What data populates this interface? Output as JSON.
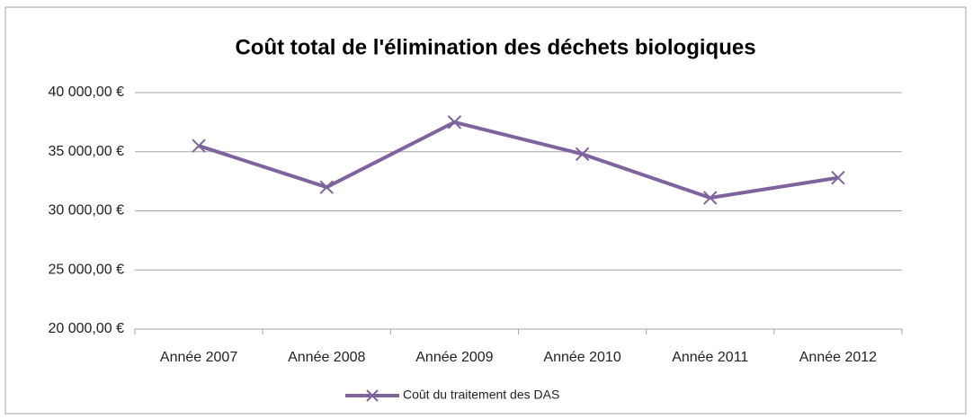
{
  "chart_data": {
    "type": "line",
    "title": "Coût total de l'élimination des déchets biologiques",
    "categories": [
      "Année 2007",
      "Année 2008",
      "Année 2009",
      "Année 2010",
      "Année 2011",
      "Année 2012"
    ],
    "series": [
      {
        "name": "Coût du traitement des DAS",
        "color": "#7e639e",
        "values": [
          35500,
          32000,
          37500,
          34800,
          31100,
          32800
        ]
      }
    ],
    "ylim": [
      20000,
      40000
    ],
    "yticks": [
      {
        "value": 20000,
        "label": "20 000,00 €"
      },
      {
        "value": 25000,
        "label": "25 000,00 €"
      },
      {
        "value": 30000,
        "label": "30 000,00 €"
      },
      {
        "value": 35000,
        "label": "35 000,00 €"
      },
      {
        "value": 40000,
        "label": "40 000,00 €"
      }
    ],
    "grid": true,
    "legend": "bottom"
  }
}
